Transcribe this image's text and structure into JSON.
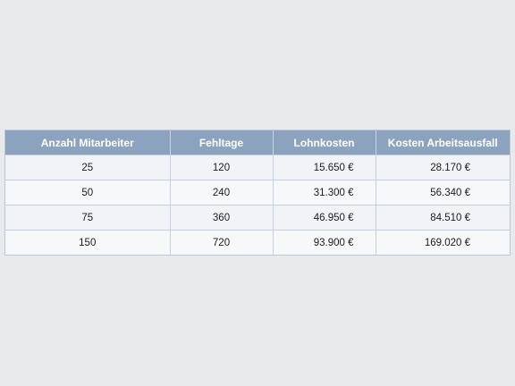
{
  "table": {
    "headers": [
      "Anzahl Mitarbeiter",
      "Fehltage",
      "Lohnkosten",
      "Kosten Arbeitsausfall"
    ],
    "rows": [
      [
        "25",
        "120",
        "15.650 €",
        "28.170 €"
      ],
      [
        "50",
        "240",
        "31.300 €",
        "56.340 €"
      ],
      [
        "75",
        "360",
        "46.950 €",
        "84.510 €"
      ],
      [
        "150",
        "720",
        "93.900 €",
        "169.020 €"
      ]
    ]
  },
  "colors": {
    "background": "#e9eaec",
    "header_bg": "#8ba3bf",
    "header_text": "#ffffff",
    "row_bg": "#f1f3f6",
    "grid": "#c4d0dd"
  }
}
